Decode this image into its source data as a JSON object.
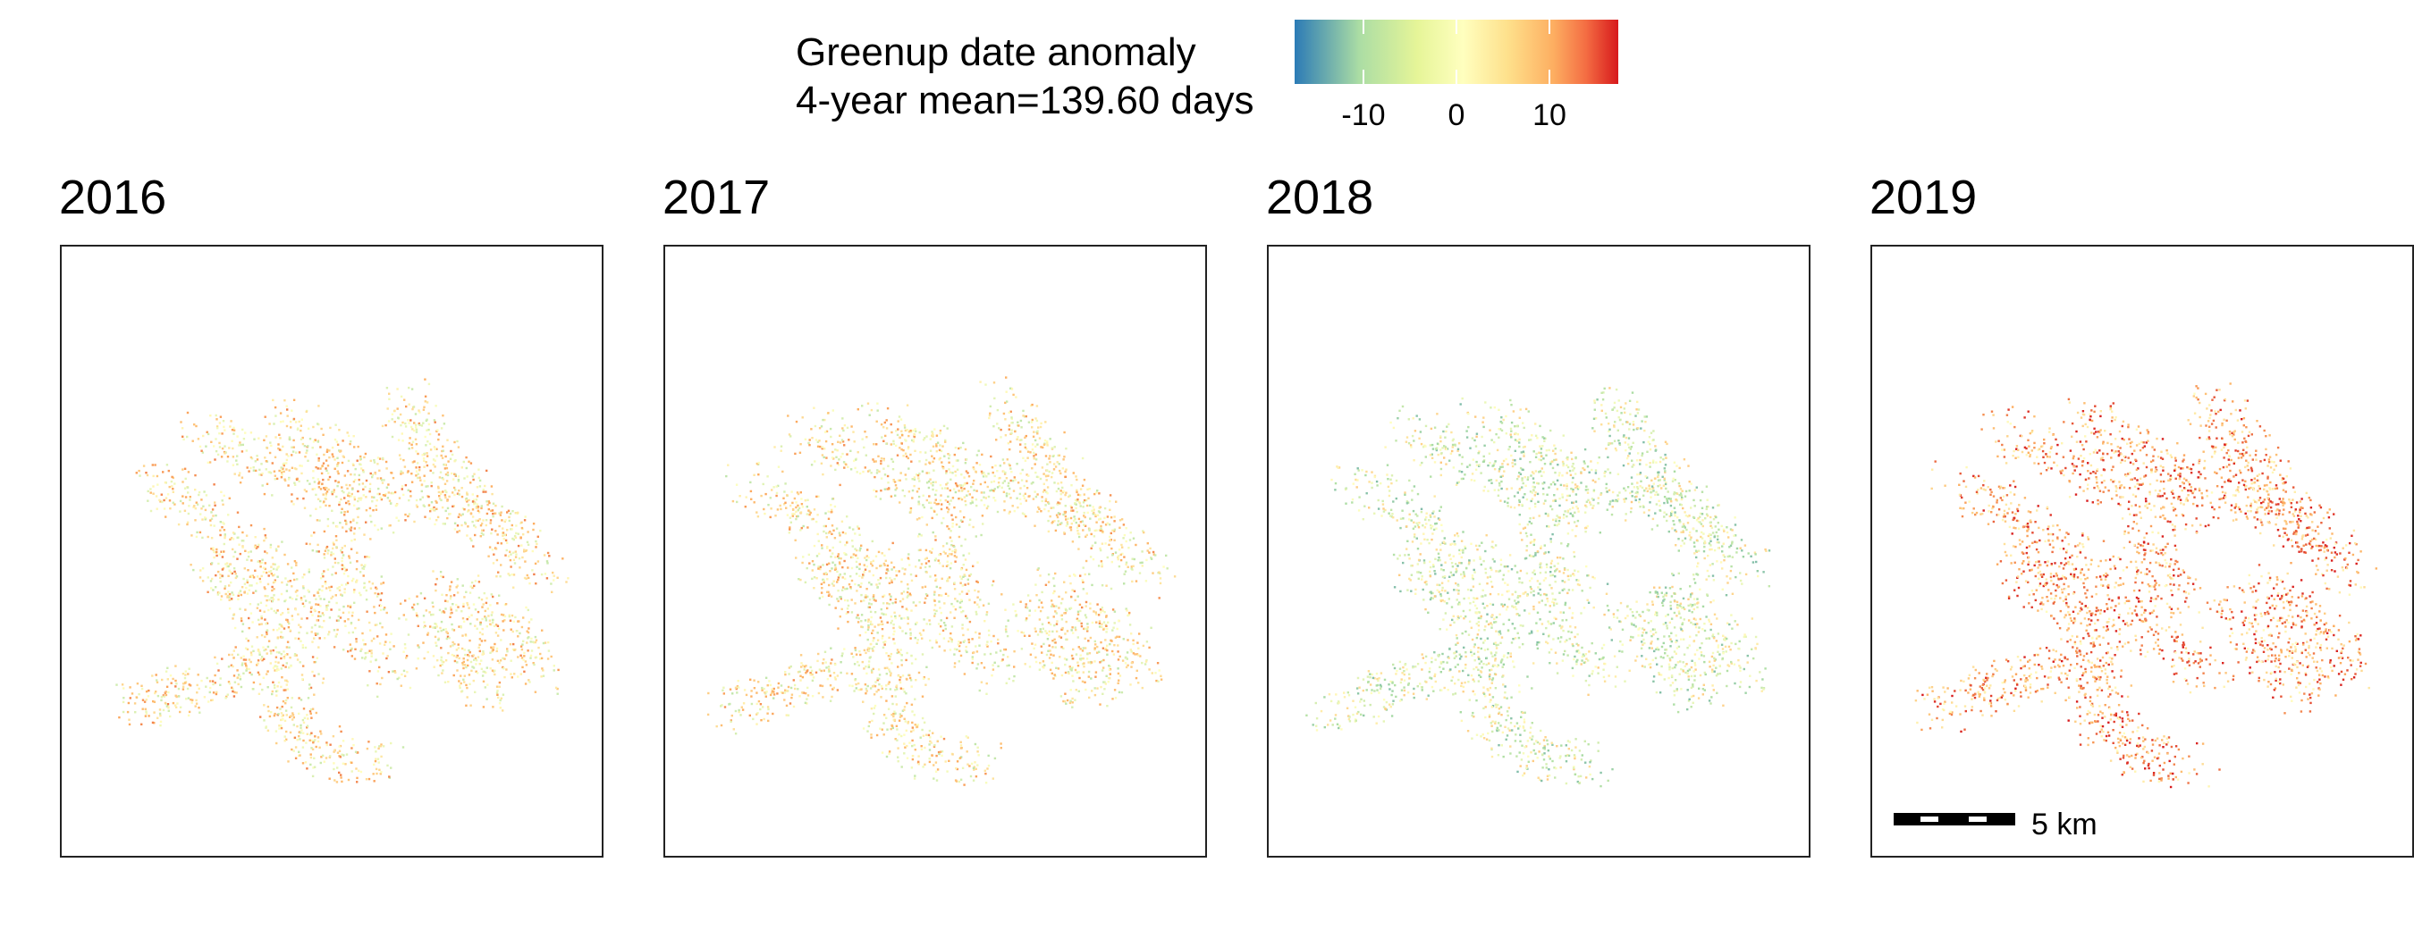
{
  "legend": {
    "title_line1": "Greenup date anomaly",
    "title_line2": "4-year mean=139.60 days",
    "range": [
      -18,
      18
    ],
    "ticks": [
      {
        "value": -10,
        "label": "-10"
      },
      {
        "value": 0,
        "label": "0"
      },
      {
        "value": 10,
        "label": "10"
      }
    ],
    "colors": [
      "#2c7bb6",
      "#abdda4",
      "#ffffbf",
      "#fdae61",
      "#d7191c"
    ]
  },
  "panels": [
    {
      "year": "2016",
      "bias": 3
    },
    {
      "year": "2017",
      "bias": 2
    },
    {
      "year": "2018",
      "bias": -3
    },
    {
      "year": "2019",
      "bias": 9
    }
  ],
  "scalebar": {
    "label": "5 km"
  }
}
